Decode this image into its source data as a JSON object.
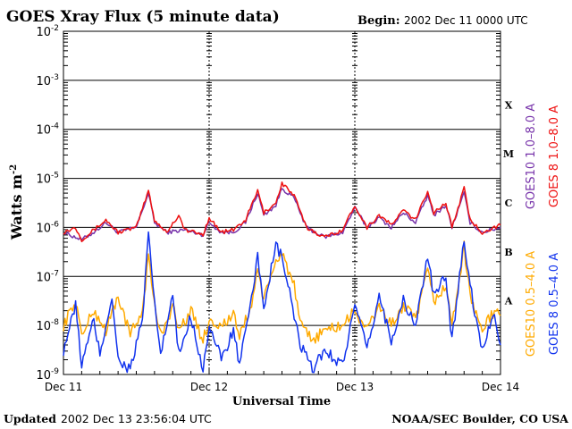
{
  "header": {
    "title": "GOES Xray Flux (5 minute data)",
    "begin_label": "Begin:",
    "begin_value": "2002 Dec 11 0000 UTC"
  },
  "footer": {
    "updated_label": "Updated",
    "updated_value": "2002 Dec 13 23:56:04 UTC",
    "source": "NOAA/SEC Boulder, CO USA"
  },
  "chart_data": {
    "type": "line",
    "title": "GOES Xray Flux (5 minute data)",
    "xlabel": "Universal Time",
    "ylabel_base": "Watts m",
    "ylabel_exp": "-2",
    "y_scale": "log",
    "ylim_exp": [
      -9,
      -2
    ],
    "y_tick_exponents": [
      -2,
      -3,
      -4,
      -5,
      -6,
      -7,
      -8,
      -9
    ],
    "xlim_hours": [
      0,
      72
    ],
    "x_ticks": [
      {
        "label": "Dec 11",
        "hour": 0
      },
      {
        "label": "Dec 12",
        "hour": 24
      },
      {
        "label": "Dec 13",
        "hour": 48
      },
      {
        "label": "Dec 14",
        "hour": 72
      }
    ],
    "flare_classes": [
      "X",
      "M",
      "C",
      "B",
      "A"
    ],
    "series": [
      {
        "name": "GOES10 1.0-8.0 A",
        "label_prefix": "GOES10",
        "label_range": "1.0–8.0 A",
        "color": "#7733aa",
        "log_points": [
          [
            0,
            -6.1
          ],
          [
            3,
            -6.25
          ],
          [
            5,
            -6.1
          ],
          [
            7,
            -5.9
          ],
          [
            9,
            -6.1
          ],
          [
            12,
            -6.0
          ],
          [
            14,
            -5.3
          ],
          [
            15,
            -5.9
          ],
          [
            17,
            -6.1
          ],
          [
            20,
            -6.05
          ],
          [
            23,
            -6.15
          ],
          [
            24,
            -5.9
          ],
          [
            26,
            -6.1
          ],
          [
            28,
            -6.1
          ],
          [
            30,
            -5.9
          ],
          [
            32,
            -5.3
          ],
          [
            33,
            -5.75
          ],
          [
            35,
            -5.55
          ],
          [
            36,
            -5.2
          ],
          [
            38,
            -5.4
          ],
          [
            40,
            -6.0
          ],
          [
            43,
            -6.2
          ],
          [
            46,
            -6.1
          ],
          [
            48,
            -5.6
          ],
          [
            50,
            -6.0
          ],
          [
            52,
            -5.8
          ],
          [
            54,
            -6.0
          ],
          [
            56,
            -5.7
          ],
          [
            58,
            -5.9
          ],
          [
            60,
            -5.35
          ],
          [
            61,
            -5.75
          ],
          [
            63,
            -5.55
          ],
          [
            64,
            -6.0
          ],
          [
            66,
            -5.3
          ],
          [
            67,
            -5.9
          ],
          [
            69,
            -6.1
          ],
          [
            72,
            -6.0
          ]
        ]
      },
      {
        "name": "GOES 8 1.0-8.0 A",
        "label_prefix": "GOES 8",
        "label_range": "1.0–8.0 A",
        "color": "#ee1111",
        "log_points": [
          [
            0,
            -6.1
          ],
          [
            2,
            -6.0
          ],
          [
            3,
            -6.25
          ],
          [
            5,
            -6.05
          ],
          [
            7,
            -5.85
          ],
          [
            9,
            -6.1
          ],
          [
            12,
            -6.0
          ],
          [
            14,
            -5.25
          ],
          [
            15,
            -5.85
          ],
          [
            17,
            -6.1
          ],
          [
            19,
            -5.75
          ],
          [
            20,
            -6.05
          ],
          [
            23,
            -6.15
          ],
          [
            24,
            -5.8
          ],
          [
            26,
            -6.1
          ],
          [
            28,
            -6.05
          ],
          [
            30,
            -5.85
          ],
          [
            32,
            -5.25
          ],
          [
            33,
            -5.7
          ],
          [
            35,
            -5.5
          ],
          [
            36,
            -5.1
          ],
          [
            38,
            -5.35
          ],
          [
            40,
            -6.0
          ],
          [
            43,
            -6.2
          ],
          [
            46,
            -6.05
          ],
          [
            48,
            -5.55
          ],
          [
            50,
            -6.0
          ],
          [
            52,
            -5.75
          ],
          [
            54,
            -5.95
          ],
          [
            56,
            -5.65
          ],
          [
            58,
            -5.85
          ],
          [
            60,
            -5.25
          ],
          [
            61,
            -5.7
          ],
          [
            63,
            -5.5
          ],
          [
            64,
            -6.0
          ],
          [
            66,
            -5.2
          ],
          [
            67,
            -5.85
          ],
          [
            69,
            -6.1
          ],
          [
            72,
            -5.95
          ]
        ]
      },
      {
        "name": "GOES10 0.5-4.0 A",
        "label_prefix": "GOES10",
        "label_range": "0.5–4.0 A",
        "color": "#ffaa00",
        "log_points": [
          [
            0,
            -8.0
          ],
          [
            2,
            -7.5
          ],
          [
            3,
            -8.2
          ],
          [
            5,
            -7.7
          ],
          [
            7,
            -8.1
          ],
          [
            9,
            -7.4
          ],
          [
            11,
            -8.2
          ],
          [
            13,
            -7.7
          ],
          [
            14,
            -6.6
          ],
          [
            15,
            -7.6
          ],
          [
            16,
            -8.2
          ],
          [
            18,
            -7.6
          ],
          [
            19,
            -8.1
          ],
          [
            21,
            -7.7
          ],
          [
            23,
            -8.3
          ],
          [
            24,
            -7.9
          ],
          [
            26,
            -8.0
          ],
          [
            28,
            -7.8
          ],
          [
            29,
            -8.2
          ],
          [
            31,
            -7.6
          ],
          [
            32,
            -6.8
          ],
          [
            33,
            -7.5
          ],
          [
            35,
            -6.7
          ],
          [
            36,
            -6.5
          ],
          [
            38,
            -7.2
          ],
          [
            39,
            -8.0
          ],
          [
            41,
            -8.3
          ],
          [
            43,
            -8.1
          ],
          [
            46,
            -8.0
          ],
          [
            48,
            -7.7
          ],
          [
            50,
            -8.1
          ],
          [
            52,
            -7.6
          ],
          [
            54,
            -8.0
          ],
          [
            56,
            -7.6
          ],
          [
            58,
            -7.9
          ],
          [
            60,
            -6.9
          ],
          [
            61,
            -7.5
          ],
          [
            63,
            -7.2
          ],
          [
            64,
            -8.0
          ],
          [
            66,
            -6.4
          ],
          [
            67,
            -7.4
          ],
          [
            69,
            -8.1
          ],
          [
            71,
            -7.7
          ],
          [
            72,
            -7.8
          ]
        ]
      },
      {
        "name": "GOES 8 0.5-4.0 A",
        "label_prefix": "GOES 8",
        "label_range": "0.5–4.0 A",
        "color": "#1133ee",
        "log_points": [
          [
            0,
            -8.5
          ],
          [
            2,
            -7.6
          ],
          [
            3,
            -8.8
          ],
          [
            5,
            -7.9
          ],
          [
            6,
            -8.6
          ],
          [
            8,
            -7.4
          ],
          [
            9,
            -8.7
          ],
          [
            11,
            -8.9
          ],
          [
            13,
            -7.9
          ],
          [
            14,
            -6.2
          ],
          [
            15,
            -7.5
          ],
          [
            16,
            -8.6
          ],
          [
            18,
            -7.4
          ],
          [
            19,
            -8.6
          ],
          [
            21,
            -7.8
          ],
          [
            23,
            -8.9
          ],
          [
            24,
            -8.0
          ],
          [
            26,
            -8.7
          ],
          [
            28,
            -8.1
          ],
          [
            29,
            -8.8
          ],
          [
            31,
            -7.5
          ],
          [
            32,
            -6.6
          ],
          [
            33,
            -7.6
          ],
          [
            35,
            -6.4
          ],
          [
            36,
            -6.6
          ],
          [
            38,
            -7.8
          ],
          [
            39,
            -8.4
          ],
          [
            41,
            -8.9
          ],
          [
            43,
            -8.5
          ],
          [
            46,
            -8.8
          ],
          [
            48,
            -7.6
          ],
          [
            50,
            -8.5
          ],
          [
            52,
            -7.4
          ],
          [
            54,
            -8.3
          ],
          [
            56,
            -7.5
          ],
          [
            58,
            -8.0
          ],
          [
            60,
            -6.6
          ],
          [
            61,
            -7.4
          ],
          [
            63,
            -7.0
          ],
          [
            64,
            -8.3
          ],
          [
            66,
            -6.2
          ],
          [
            67,
            -7.2
          ],
          [
            69,
            -8.5
          ],
          [
            71,
            -7.7
          ],
          [
            72,
            -8.4
          ]
        ]
      }
    ]
  }
}
